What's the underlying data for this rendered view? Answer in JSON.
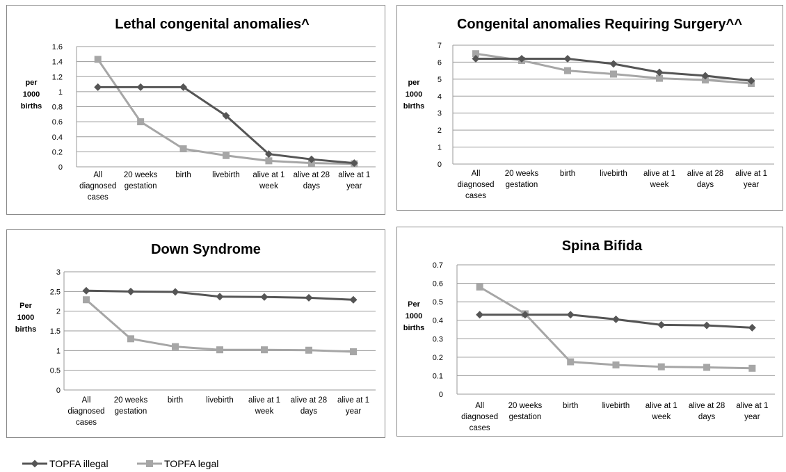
{
  "chart_data": [
    {
      "type": "line",
      "title": "Lethal congenital anomalies^",
      "ylabel": "per\n1000\nbirths",
      "ylim": [
        0,
        1.6
      ],
      "yticks": [
        "0",
        "0.2",
        "0.4",
        "0.6",
        "0.8",
        "1",
        "1.2",
        "1.4",
        "1.6"
      ],
      "categories": [
        "All\ndiagnosed\ncases",
        "20 weeks\ngestation",
        "birth",
        "livebirth",
        "alive at 1\nweek",
        "alive at 28\ndays",
        "alive at 1\nyear"
      ],
      "series": [
        {
          "name": "TOPFA illegal",
          "values": [
            1.06,
            1.06,
            1.06,
            0.68,
            0.17,
            0.1,
            0.05
          ]
        },
        {
          "name": "TOPFA legal",
          "values": [
            1.43,
            0.6,
            0.24,
            0.15,
            0.08,
            0.05,
            0.04
          ]
        }
      ]
    },
    {
      "type": "line",
      "title": "Congenital anomalies Requiring Surgery^^",
      "ylabel": "per\n1000\nbirths",
      "ylim": [
        0,
        7
      ],
      "yticks": [
        "0",
        "1",
        "2",
        "3",
        "4",
        "5",
        "6",
        "7"
      ],
      "categories": [
        "All\ndiagnosed\ncases",
        "20 weeks\ngestation",
        "birth",
        "livebirth",
        "alive at 1\nweek",
        "alive at 28\ndays",
        "alive at 1\nyear"
      ],
      "series": [
        {
          "name": "TOPFA illegal",
          "values": [
            6.2,
            6.2,
            6.2,
            5.9,
            5.4,
            5.2,
            4.9
          ]
        },
        {
          "name": "TOPFA legal",
          "values": [
            6.5,
            6.1,
            5.5,
            5.3,
            5.05,
            4.95,
            4.75
          ]
        }
      ]
    },
    {
      "type": "line",
      "title": "Down Syndrome",
      "ylabel": "Per\n1000\nbirths",
      "ylim": [
        0,
        3
      ],
      "yticks": [
        "0",
        "0.5",
        "1",
        "1.5",
        "2",
        "2.5",
        "3"
      ],
      "categories": [
        "All\ndiagnosed\ncases",
        "20 weeks\ngestation",
        "birth",
        "livebirth",
        "alive at 1\nweek",
        "alive at 28\ndays",
        "alive at 1\nyear"
      ],
      "series": [
        {
          "name": "TOPFA illegal",
          "values": [
            2.52,
            2.5,
            2.49,
            2.37,
            2.36,
            2.34,
            2.29
          ]
        },
        {
          "name": "TOPFA legal",
          "values": [
            2.29,
            1.3,
            1.1,
            1.02,
            1.02,
            1.01,
            0.97
          ]
        }
      ]
    },
    {
      "type": "line",
      "title": "Spina Bifida",
      "ylabel": "Per\n1000\nbirths",
      "ylim": [
        0,
        0.7
      ],
      "yticks": [
        "0",
        "0.1",
        "0.2",
        "0.3",
        "0.4",
        "0.5",
        "0.6",
        "0.7"
      ],
      "categories": [
        "All\ndiagnosed\ncases",
        "20 weeks\ngestation",
        "birth",
        "livebirth",
        "alive at 1\nweek",
        "alive at 28\ndays",
        "alive at 1\nyear"
      ],
      "series": [
        {
          "name": "TOPFA illegal",
          "values": [
            0.43,
            0.43,
            0.43,
            0.405,
            0.375,
            0.372,
            0.36
          ]
        },
        {
          "name": "TOPFA legal",
          "values": [
            0.58,
            0.435,
            0.175,
            0.158,
            0.148,
            0.145,
            0.14
          ]
        }
      ]
    }
  ],
  "legend": {
    "items": [
      {
        "name": "TOPFA illegal",
        "color": "#555555",
        "marker": "diamond"
      },
      {
        "name": "TOPFA legal",
        "color": "#a6a6a6",
        "marker": "square"
      }
    ]
  },
  "colors": {
    "illegal": "#555555",
    "legal": "#a6a6a6",
    "grid": "#9a9a9a",
    "text": "#000000"
  }
}
